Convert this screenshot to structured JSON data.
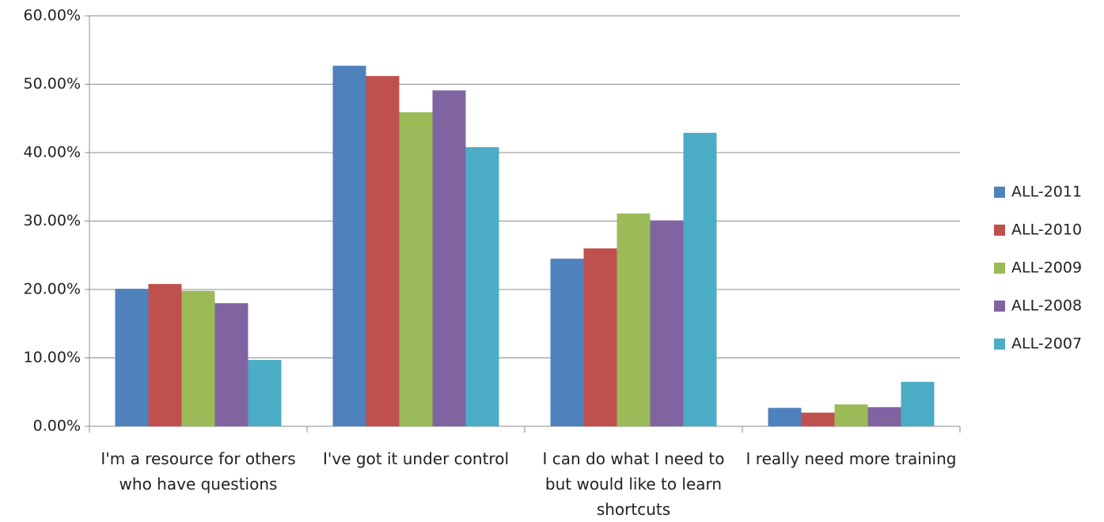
{
  "chart_data": {
    "type": "bar",
    "categories": [
      "I'm a resource for others who have questions",
      "I've got it under control",
      "I can do what I need to but would like to learn shortcuts",
      "I really need more training"
    ],
    "series": [
      {
        "name": "ALL-2011",
        "color": "#4f81bd",
        "values": [
          20.1,
          52.7,
          24.5,
          2.7
        ]
      },
      {
        "name": "ALL-2010",
        "color": "#c0504d",
        "values": [
          20.8,
          51.2,
          26.0,
          2.0
        ]
      },
      {
        "name": "ALL-2009",
        "color": "#9bbb59",
        "values": [
          19.8,
          45.9,
          31.1,
          3.2
        ]
      },
      {
        "name": "ALL-2008",
        "color": "#8064a2",
        "values": [
          18.0,
          49.1,
          30.1,
          2.8
        ]
      },
      {
        "name": "ALL-2007",
        "color": "#4bacc6",
        "values": [
          9.7,
          40.8,
          42.9,
          6.5
        ]
      }
    ],
    "ylim": [
      0,
      60
    ],
    "yticks": [
      {
        "value": 0,
        "label": "0.00%"
      },
      {
        "value": 10,
        "label": "10.00%"
      },
      {
        "value": 20,
        "label": "20.00%"
      },
      {
        "value": 30,
        "label": "30.00%"
      },
      {
        "value": 40,
        "label": "40.00%"
      },
      {
        "value": 50,
        "label": "50.00%"
      },
      {
        "value": 60,
        "label": "60.00%"
      }
    ],
    "grid": true,
    "legend": "right"
  }
}
